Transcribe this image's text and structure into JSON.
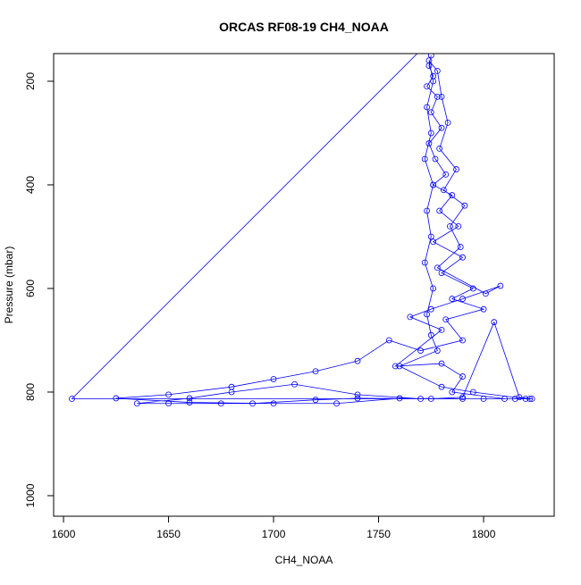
{
  "chart_data": {
    "type": "scatter",
    "lines": true,
    "title": "ORCAS RF08-19 CH4_NOAA",
    "x_label": "CH4_NOAA",
    "y_label": "Pressure (mbar)",
    "xlim": [
      1595.3,
      1833.6
    ],
    "ylim": [
      1039.7,
      146.6
    ],
    "xticks": [
      1600,
      1650,
      1700,
      1750,
      1800
    ],
    "yticks": [
      200,
      400,
      600,
      800,
      1000
    ],
    "series": [
      {
        "color": "#0000ff",
        "x": [
          1775,
          1774,
          1776,
          1773,
          1778,
          1775,
          1780,
          1774,
          1777,
          1782,
          1776,
          1785,
          1779,
          1788,
          1776,
          1790,
          1780,
          1795,
          1785,
          1800,
          1782,
          1790,
          1770,
          1755,
          1740,
          1720,
          1700,
          1680,
          1650,
          1625,
          1660,
          1700,
          1730,
          1760,
          1790,
          1815,
          1820,
          1795,
          1780,
          1760,
          1778,
          1775,
          1773,
          1776,
          1772,
          1775,
          1773,
          1776,
          1772,
          1775,
          1773,
          1776,
          1774,
          1778,
          1780,
          1783,
          1779,
          1787,
          1781,
          1791,
          1784,
          1789,
          1778,
          1801,
          1808,
          1790,
          1775,
          1765,
          1780,
          1758,
          1780,
          1790,
          1785,
          1810,
          1822,
          1800,
          1770,
          1740,
          1710,
          1680,
          1660,
          1635,
          1650,
          1675,
          1690,
          1720,
          1740,
          1775,
          1790,
          1805,
          1817,
          1823,
          1604,
          1770
        ],
        "y": [
          150,
          170,
          190,
          210,
          230,
          260,
          290,
          320,
          350,
          380,
          400,
          420,
          450,
          480,
          510,
          540,
          570,
          600,
          620,
          640,
          660,
          700,
          720,
          700,
          740,
          760,
          775,
          790,
          805,
          812,
          820,
          822,
          822,
          812,
          813,
          813,
          813,
          800,
          790,
          750,
          720,
          690,
          650,
          600,
          550,
          500,
          450,
          400,
          350,
          300,
          250,
          200,
          160,
          180,
          230,
          280,
          330,
          370,
          410,
          440,
          480,
          520,
          560,
          610,
          595,
          620,
          640,
          655,
          680,
          750,
          745,
          770,
          800,
          813,
          813,
          813,
          813,
          805,
          785,
          800,
          812,
          822,
          822,
          822,
          822,
          815,
          812,
          813,
          810,
          665,
          810,
          813,
          813,
          140
        ]
      }
    ]
  }
}
